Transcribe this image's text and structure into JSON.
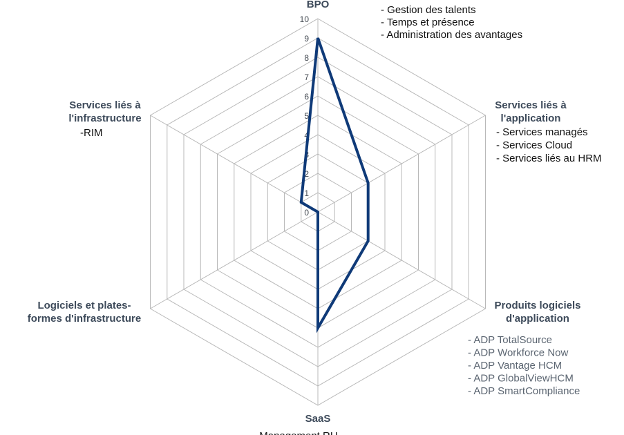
{
  "chart_data": {
    "type": "radar",
    "axes": [
      {
        "label": [
          "BPO"
        ],
        "notes_style": "dark",
        "notes": [
          "- Gestion des talents",
          "- Temps et présence",
          "- Administration des avantages"
        ]
      },
      {
        "label": [
          "Services liés à",
          "l'application"
        ],
        "notes_style": "dark",
        "notes": [
          "-  Services managés",
          "- Services Cloud",
          "- Services liés au HRM"
        ]
      },
      {
        "label": [
          "Produits logiciels",
          "d'application"
        ],
        "notes_style": "gray",
        "notes": [
          "- ADP TotalSource",
          "- ADP Workforce Now",
          "- ADP Vantage HCM",
          "- ADP GlobalViewHCM",
          "- ADP SmartCompliance"
        ]
      },
      {
        "label": [
          "SaaS"
        ],
        "notes_style": "dark",
        "notes": [
          "Management RH"
        ]
      },
      {
        "label": [
          "Logiciels et plates-",
          "formes d'infrastructure"
        ],
        "notes_style": "dark",
        "notes": []
      },
      {
        "label": [
          "Services liés à",
          "l'infrastructure"
        ],
        "notes_style": "dark",
        "notes": [
          "-RIM"
        ]
      }
    ],
    "range": [
      0,
      10
    ],
    "ticks": [
      "0",
      "1",
      "2",
      "3",
      "4",
      "5",
      "6",
      "7",
      "8",
      "9",
      "10"
    ],
    "series": [
      {
        "values": [
          9,
          3,
          3,
          6,
          0,
          1
        ],
        "color": "#0f3a78"
      }
    ],
    "grid": true,
    "legend": "none"
  }
}
